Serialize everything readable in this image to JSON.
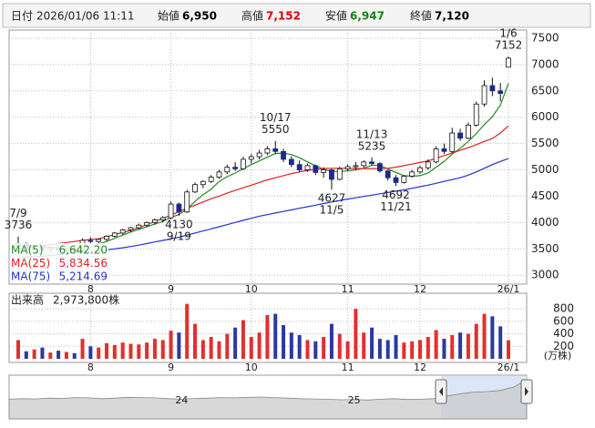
{
  "header": {
    "date_label": "日付",
    "datetime": "2026/01/06 11:11",
    "items": [
      {
        "label": "始値",
        "value": "6,950",
        "color": "#000000"
      },
      {
        "label": "高値",
        "value": "7,152",
        "color": "#dd0000"
      },
      {
        "label": "安値",
        "value": "6,947",
        "color": "#118811"
      },
      {
        "label": "終値",
        "value": "7,120",
        "color": "#000000"
      }
    ]
  },
  "chart_data": {
    "type": "candlestick",
    "categories": [
      "7/9",
      null,
      null,
      null,
      null,
      null,
      null,
      null,
      null,
      "8",
      null,
      null,
      null,
      null,
      null,
      null,
      null,
      null,
      null,
      "9",
      null,
      null,
      null,
      null,
      null,
      null,
      null,
      null,
      null,
      "10",
      null,
      null,
      null,
      null,
      null,
      null,
      null,
      null,
      null,
      null,
      null,
      "11",
      null,
      null,
      null,
      null,
      null,
      null,
      null,
      null,
      "12",
      null,
      null,
      null,
      null,
      null,
      null,
      null,
      null,
      null,
      null,
      "26/1"
    ],
    "open": [
      3560,
      3600,
      3500,
      3540,
      3490,
      3520,
      3480,
      3500,
      3460,
      3660,
      3640,
      3680,
      3740,
      3800,
      3860,
      3900,
      3950,
      4000,
      4050,
      4090,
      4350,
      4200,
      4580,
      4720,
      4780,
      4860,
      4960,
      5050,
      5020,
      5200,
      5250,
      5320,
      5400,
      5350,
      5200,
      5100,
      5000,
      5080,
      4950,
      5000,
      4820,
      5020,
      5060,
      5080,
      5150,
      5120,
      4980,
      4850,
      4760,
      4880,
      4960,
      5040,
      5150,
      5400,
      5350,
      5700,
      5600,
      5850,
      6250,
      6600,
      6500,
      6950
    ],
    "high": [
      3736,
      3620,
      3560,
      3580,
      3540,
      3560,
      3520,
      3540,
      3700,
      3720,
      3700,
      3760,
      3820,
      3880,
      3920,
      3980,
      4020,
      4080,
      4120,
      4400,
      4380,
      4620,
      4760,
      4800,
      4900,
      5000,
      5100,
      5150,
      5250,
      5300,
      5380,
      5450,
      5550,
      5400,
      5260,
      5180,
      5120,
      5100,
      5050,
      5020,
      5060,
      5100,
      5150,
      5180,
      5235,
      5150,
      5000,
      4900,
      4900,
      5000,
      5080,
      5200,
      5450,
      5500,
      5800,
      5780,
      5900,
      6300,
      6700,
      6750,
      6650,
      7152
    ],
    "low": [
      3540,
      3480,
      3460,
      3470,
      3420,
      3470,
      3430,
      3440,
      3450,
      3600,
      3590,
      3650,
      3720,
      3770,
      3820,
      3870,
      3920,
      3960,
      4000,
      4060,
      4130,
      4180,
      4560,
      4650,
      4750,
      4830,
      4920,
      4980,
      5000,
      5120,
      5200,
      5280,
      5300,
      5150,
      5050,
      4950,
      4960,
      4900,
      4850,
      4627,
      4800,
      4980,
      5000,
      5040,
      5080,
      4950,
      4800,
      4692,
      4740,
      4850,
      4920,
      5000,
      5120,
      5300,
      5320,
      5550,
      5580,
      5820,
      6200,
      6400,
      6300,
      6947
    ],
    "close": [
      3600,
      3500,
      3540,
      3490,
      3520,
      3480,
      3500,
      3460,
      3660,
      3640,
      3680,
      3740,
      3800,
      3860,
      3900,
      3950,
      4000,
      4050,
      4090,
      4350,
      4200,
      4580,
      4720,
      4780,
      4860,
      4960,
      5050,
      5020,
      5200,
      5250,
      5320,
      5400,
      5350,
      5200,
      5100,
      5000,
      5080,
      4950,
      5000,
      4820,
      5020,
      5060,
      5080,
      5150,
      5120,
      4980,
      4850,
      4760,
      4880,
      4960,
      5040,
      5150,
      5400,
      5350,
      5700,
      5600,
      5850,
      6250,
      6600,
      6500,
      6450,
      7120
    ],
    "up_color": "#ffffff",
    "down_color": "#1c2a8c",
    "ylim": [
      2830,
      7655
    ],
    "yticks": [
      3000,
      3500,
      4000,
      4500,
      5000,
      5500,
      6000,
      6500,
      7000,
      7500
    ],
    "grid": true,
    "series": [
      {
        "name": "MA(5)",
        "color": "#228b22",
        "legend_label": "6,642.20",
        "values": [
          3560,
          3570,
          3550,
          3540,
          3530,
          3520,
          3500,
          3490,
          3530,
          3560,
          3590,
          3640,
          3700,
          3760,
          3820,
          3870,
          3920,
          3970,
          4020,
          4100,
          4150,
          4260,
          4400,
          4530,
          4630,
          4780,
          4870,
          4940,
          5020,
          5100,
          5170,
          5240,
          5310,
          5320,
          5290,
          5230,
          5150,
          5080,
          5010,
          4970,
          4970,
          4980,
          5000,
          5030,
          5090,
          5080,
          5020,
          4950,
          4890,
          4880,
          4890,
          4940,
          5050,
          5160,
          5300,
          5410,
          5540,
          5690,
          5860,
          6010,
          6230,
          6642.2
        ]
      },
      {
        "name": "MA(25)",
        "color": "#e02020",
        "legend_label": "5,834.56",
        "values": [
          3500,
          3520,
          3540,
          3560,
          3580,
          3600,
          3620,
          3640,
          3660,
          3680,
          3690,
          3730,
          3770,
          3810,
          3850,
          3900,
          3960,
          4020,
          4080,
          4140,
          4210,
          4270,
          4330,
          4390,
          4450,
          4500,
          4557,
          4610,
          4660,
          4710,
          4760,
          4810,
          4850,
          4890,
          4930,
          4960,
          4990,
          5010,
          5024,
          5030,
          5030,
          5030,
          5025,
          5024,
          5024,
          5024,
          5030,
          5050,
          5080,
          5110,
          5140,
          5170,
          5220,
          5270,
          5318,
          5370,
          5420,
          5480,
          5540,
          5595,
          5700,
          5834.56
        ]
      },
      {
        "name": "MA(75)",
        "color": "#2233cc",
        "legend_label": "5,214.69",
        "values": [
          3330,
          3340,
          3350,
          3360,
          3375,
          3390,
          3405,
          3420,
          3440,
          3450,
          3465,
          3480,
          3500,
          3520,
          3545,
          3570,
          3600,
          3630,
          3660,
          3690,
          3720,
          3760,
          3800,
          3840,
          3880,
          3920,
          3960,
          4000,
          4040,
          4080,
          4120,
          4150,
          4180,
          4210,
          4240,
          4270,
          4300,
          4330,
          4360,
          4390,
          4420,
          4445,
          4470,
          4495,
          4520,
          4545,
          4570,
          4595,
          4620,
          4650,
          4680,
          4710,
          4745,
          4780,
          4815,
          4850,
          4900,
          4960,
          5030,
          5100,
          5160,
          5214.69
        ]
      }
    ],
    "annotations": [
      {
        "date": "7/9",
        "value": 3736
      },
      {
        "date": "9/19",
        "value": 4130
      },
      {
        "date": "10/17",
        "value": 5550
      },
      {
        "date": "11/5",
        "value": 4627
      },
      {
        "date": "11/13",
        "value": 5235
      },
      {
        "date": "11/21",
        "value": 4692
      },
      {
        "date": "1/6",
        "value": 7152
      }
    ],
    "volume": {
      "title": "出来高",
      "latest_label": "2,973,800株",
      "unit": "(万株)",
      "up_color": "#e0302f",
      "down_color": "#2a3aa0",
      "values": [
        300,
        120,
        150,
        180,
        100,
        130,
        110,
        90,
        320,
        200,
        180,
        250,
        220,
        260,
        240,
        230,
        260,
        320,
        300,
        450,
        420,
        880,
        560,
        300,
        350,
        280,
        400,
        500,
        620,
        350,
        420,
        700,
        720,
        540,
        420,
        380,
        300,
        280,
        350,
        560,
        400,
        280,
        800,
        420,
        500,
        320,
        300,
        380,
        260,
        280,
        300,
        350,
        460,
        320,
        380,
        420,
        400,
        560,
        720,
        680,
        520,
        297.38
      ],
      "ylim": [
        0,
        1050
      ],
      "yticks": [
        200,
        400,
        600,
        800
      ]
    },
    "navigator": {
      "categories": [
        null,
        null,
        null,
        null,
        null,
        null,
        null,
        null,
        null,
        null,
        null,
        null,
        null,
        "24",
        null,
        null,
        null,
        null,
        null,
        null,
        null,
        null,
        null,
        null,
        null,
        null,
        "25",
        null,
        null,
        null,
        null,
        null,
        null,
        null,
        null,
        null,
        null,
        null,
        null,
        null
      ],
      "values": [
        3600,
        3700,
        3650,
        3800,
        3750,
        3900,
        3850,
        3700,
        3800,
        3950,
        3900,
        3850,
        3700,
        3600,
        3750,
        3800,
        3900,
        3850,
        3950,
        4000,
        3900,
        3800,
        3700,
        3650,
        3600,
        3500,
        3550,
        3450,
        3600,
        3700,
        3550,
        3600,
        3700,
        4200,
        4600,
        4900,
        5000,
        5200,
        5800,
        7100
      ],
      "ylim": [
        0,
        8000
      ]
    }
  }
}
